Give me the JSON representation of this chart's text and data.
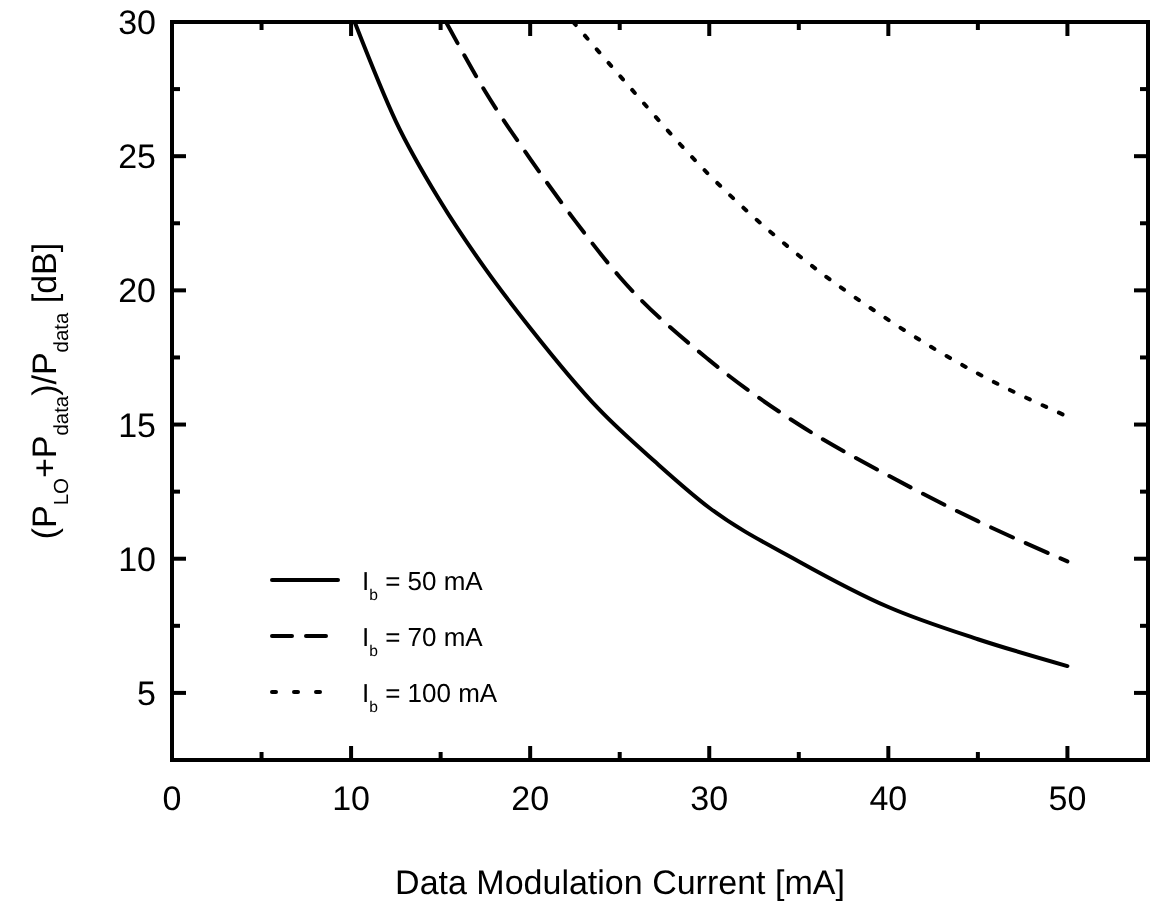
{
  "chart_data": {
    "type": "line",
    "xlabel": "Data Modulation Current [mA]",
    "ylabel": "(P$_{LO}$+P$_{data}$)/P$_{data}$ [dB]",
    "xlim": [
      0,
      54.5
    ],
    "ylim": [
      2.5,
      30
    ],
    "xticks": [
      0,
      {
        "value": 5,
        "label": null
      },
      10,
      {
        "value": 15,
        "label": null
      },
      20,
      {
        "value": 25,
        "label": null
      },
      30,
      {
        "value": 35,
        "label": null
      },
      40,
      {
        "value": 45,
        "label": null
      },
      50
    ],
    "yticks": [
      {
        "value": 2.5,
        "label": null
      },
      5,
      {
        "value": 7.5,
        "label": null
      },
      10,
      {
        "value": 12.5,
        "label": null
      },
      15,
      {
        "value": 17.5,
        "label": null
      },
      20,
      {
        "value": 22.5,
        "label": null
      },
      25,
      {
        "value": 27.5,
        "label": null
      },
      30
    ],
    "grid": false,
    "legend": "bottom left",
    "marker": "none",
    "series": [
      {
        "name": "I$_{b}$ = 50 mA",
        "color": "#000000",
        "line_style": "solid",
        "x": [
          10.2,
          12.5,
          15,
          17.5,
          20,
          23.8,
          27,
          30,
          35,
          40,
          45,
          50
        ],
        "values": [
          30,
          26.3,
          23.3,
          20.8,
          18.6,
          15.6,
          13.6,
          11.9,
          9.9,
          8.2,
          7.0,
          6.0
        ]
      },
      {
        "name": "I$_{b}$ = 70 mA",
        "color": "#000000",
        "line_style": "dashed",
        "x": [
          15.3,
          17.5,
          20,
          22.5,
          25,
          30,
          35,
          40,
          45,
          50
        ],
        "values": [
          30,
          27.4,
          24.9,
          22.6,
          20.5,
          17.4,
          15.0,
          13.1,
          11.4,
          9.9
        ]
      },
      {
        "name": "I$_{b}$ = 100 mA",
        "color": "#000000",
        "line_style": "dotted",
        "x": [
          22.4,
          25,
          30,
          35,
          40,
          45,
          50
        ],
        "values": [
          30,
          28.0,
          24.3,
          21.3,
          18.9,
          16.9,
          15.3
        ]
      }
    ]
  }
}
